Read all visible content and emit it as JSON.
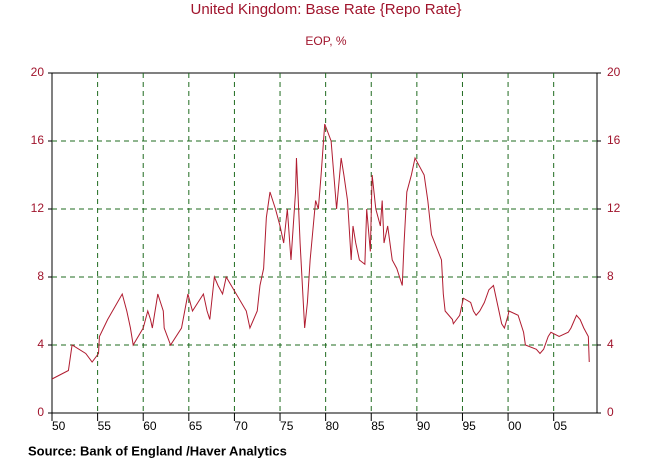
{
  "chart_data": {
    "type": "line",
    "title": "United Kingdom: Base Rate {Repo Rate}",
    "subtitle": "EOP, %",
    "source": "Source:  Bank of England /Haver Analytics",
    "color": "#b01c30",
    "grid": true,
    "x": [
      1950,
      1951.8,
      1952.2,
      1953.7,
      1954.4,
      1955.1,
      1955.2,
      1956.1,
      1957.7,
      1958.2,
      1958.4,
      1958.6,
      1958.9,
      1960.0,
      1960.5,
      1960.8,
      1961.0,
      1961.6,
      1961.9,
      1962.2,
      1962.3,
      1963.0,
      1964.2,
      1964.9,
      1965.4,
      1966.6,
      1967.0,
      1967.3,
      1967.8,
      1968.2,
      1968.7,
      1969.1,
      1970.2,
      1971.3,
      1971.7,
      1972.5,
      1972.8,
      1973.2,
      1973.5,
      1973.9,
      1974.5,
      1975.0,
      1975.4,
      1975.8,
      1976.2,
      1976.7,
      1976.8,
      1977.2,
      1977.7,
      1978.0,
      1978.3,
      1978.9,
      1979.2,
      1979.5,
      1979.9,
      1980.6,
      1980.9,
      1981.2,
      1981.7,
      1982.0,
      1982.4,
      1982.8,
      1983.0,
      1983.3,
      1983.7,
      1984.3,
      1984.5,
      1984.9,
      1985.1,
      1985.5,
      1986.0,
      1986.2,
      1986.4,
      1986.8,
      1987.3,
      1987.8,
      1988.4,
      1988.6,
      1988.9,
      1989.4,
      1989.8,
      1990.8,
      1991.2,
      1991.6,
      1992.7,
      1992.9,
      1993.1,
      1993.9,
      1994.0,
      1994.7,
      1995.1,
      1995.9,
      1996.2,
      1996.5,
      1996.9,
      1997.4,
      1997.9,
      1998.4,
      1998.9,
      1999.3,
      1999.6,
      2000.0,
      2000.1,
      2001.1,
      2001.7,
      2001.9,
      2003.1,
      2003.5,
      2003.9,
      2004.4,
      2004.7,
      2005.6,
      2006.6,
      2006.9,
      2007.1,
      2007.5,
      2007.9,
      2008.1,
      2008.3,
      2008.8,
      2008.9
    ],
    "values": [
      2,
      2.5,
      4,
      3.5,
      3,
      3.5,
      4.5,
      5.5,
      7,
      6,
      5.5,
      5,
      4,
      5,
      6,
      5.5,
      5,
      7,
      6.5,
      6,
      5,
      4,
      5,
      7,
      6,
      7,
      6,
      5.5,
      8,
      7.5,
      7,
      8,
      7,
      6,
      5,
      6,
      7.5,
      8.5,
      11.5,
      13,
      12,
      11,
      10,
      12,
      9,
      13,
      15,
      10,
      5,
      6.5,
      9,
      12.5,
      12,
      14,
      17,
      16,
      14,
      12,
      15,
      14,
      12.5,
      9,
      11,
      10,
      9,
      8.75,
      12,
      9.5,
      14,
      12,
      11,
      12.5,
      10,
      11,
      9,
      8.5,
      7.5,
      10,
      13,
      14,
      15,
      14,
      12.5,
      10.5,
      9,
      7,
      6,
      5.5,
      5.25,
      5.75,
      6.75,
      6.5,
      6,
      5.75,
      6,
      6.5,
      7.25,
      7.5,
      6.25,
      5.25,
      5,
      5.75,
      6,
      5.75,
      4.75,
      4,
      3.75,
      3.5,
      3.75,
      4.5,
      4.75,
      4.5,
      4.75,
      5,
      5.25,
      5.75,
      5.5,
      5.25,
      5,
      4.5,
      3
    ],
    "xlim": [
      1950,
      2009.75
    ],
    "xticks": [
      {
        "value": 1950,
        "label": "50"
      },
      {
        "value": 1955,
        "label": "55"
      },
      {
        "value": 1960,
        "label": "60"
      },
      {
        "value": 1965,
        "label": "65"
      },
      {
        "value": 1970,
        "label": "70"
      },
      {
        "value": 1975,
        "label": "75"
      },
      {
        "value": 1980,
        "label": "80"
      },
      {
        "value": 1985,
        "label": "85"
      },
      {
        "value": 1990,
        "label": "90"
      },
      {
        "value": 1995,
        "label": "95"
      },
      {
        "value": 2000,
        "label": "00"
      },
      {
        "value": 2005,
        "label": "05"
      }
    ],
    "ylim": [
      0,
      20
    ],
    "yticks": [
      0,
      4,
      8,
      12,
      16,
      20
    ],
    "y2lim": [
      0,
      20
    ],
    "y2ticks": [
      0,
      4,
      8,
      12,
      16,
      20
    ]
  }
}
